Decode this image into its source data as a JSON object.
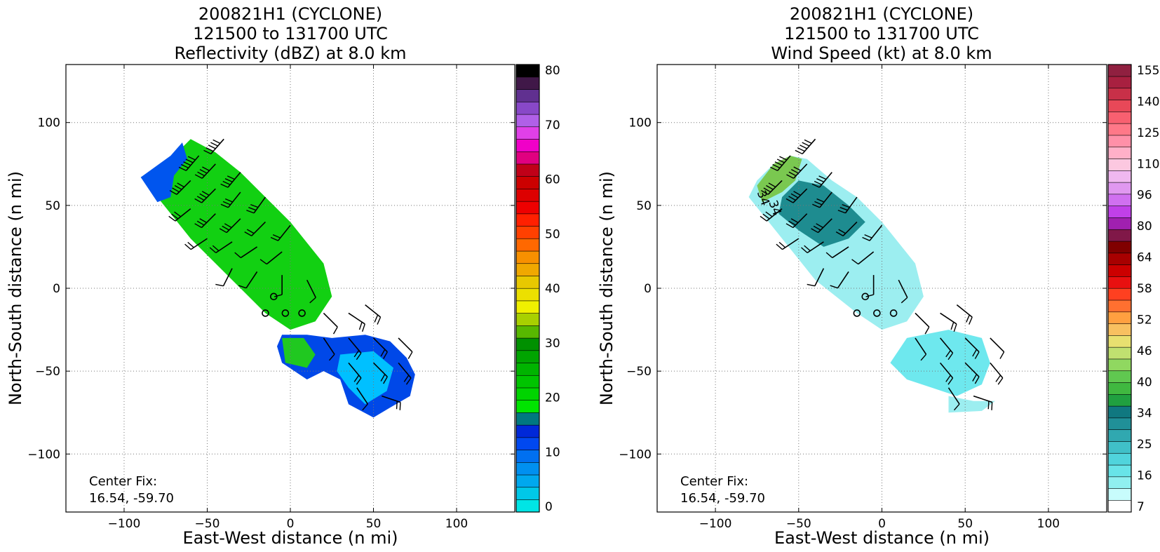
{
  "chart_data": [
    {
      "type": "heatmap",
      "title": [
        "200821H1 (CYCLONE)",
        "121500 to 131700 UTC",
        "Reflectivity (dBZ) at 8.0 km"
      ],
      "xlabel": "East-West distance (n mi)",
      "ylabel": "North-South distance (n mi)",
      "xlim": [
        -135,
        135
      ],
      "ylim": [
        -135,
        135
      ],
      "xticks": [
        "−100",
        "−50",
        "0",
        "50",
        "100"
      ],
      "yticks": [
        "−100",
        "−50",
        "0",
        "50",
        "100"
      ],
      "grid": true,
      "annotation": [
        "Center Fix:",
        "16.54, -59.70"
      ],
      "colorbar": {
        "min": 0,
        "max": 80,
        "tick_labels": [
          "80",
          "70",
          "60",
          "50",
          "40",
          "30",
          "20",
          "10",
          "0"
        ],
        "colors": [
          "#00e5e5",
          "#00c8e8",
          "#00a8ee",
          "#0090f0",
          "#0070f0",
          "#0048f0",
          "#0028d8",
          "#007880",
          "#00e400",
          "#00d400",
          "#00c400",
          "#00b400",
          "#00a400",
          "#009000",
          "#58b800",
          "#a8d000",
          "#f0f000",
          "#ece000",
          "#e8c800",
          "#f0a800",
          "#f89000",
          "#ff6800",
          "#ff4000",
          "#ff2000",
          "#ee0000",
          "#dd0000",
          "#cc0000",
          "#c00018",
          "#e00080",
          "#f000c8",
          "#e040e8",
          "#b060e8",
          "#8848c8",
          "#603090",
          "#401848",
          "#000000"
        ]
      },
      "regions": [
        {
          "name": "main-band",
          "color": "#12d012",
          "points": [
            [
              -90,
              67
            ],
            [
              -70,
              80
            ],
            [
              -60,
              90
            ],
            [
              -45,
              82
            ],
            [
              -30,
              70
            ],
            [
              -15,
              55
            ],
            [
              0,
              40
            ],
            [
              20,
              15
            ],
            [
              25,
              -5
            ],
            [
              15,
              -20
            ],
            [
              0,
              -25
            ],
            [
              -15,
              -15
            ],
            [
              -40,
              10
            ],
            [
              -60,
              30
            ],
            [
              -80,
              55
            ]
          ]
        },
        {
          "name": "nw-edge",
          "color": "#0055ee",
          "points": [
            [
              -90,
              67
            ],
            [
              -72,
              80
            ],
            [
              -65,
              88
            ],
            [
              -62,
              78
            ],
            [
              -70,
              68
            ],
            [
              -72,
              55
            ],
            [
              -80,
              52
            ]
          ]
        },
        {
          "name": "lower-blob",
          "color": "#0048e8",
          "points": [
            [
              -5,
              -28
            ],
            [
              10,
              -28
            ],
            [
              25,
              -30
            ],
            [
              45,
              -28
            ],
            [
              60,
              -32
            ],
            [
              70,
              -42
            ],
            [
              75,
              -52
            ],
            [
              72,
              -65
            ],
            [
              60,
              -72
            ],
            [
              50,
              -78
            ],
            [
              35,
              -70
            ],
            [
              30,
              -55
            ],
            [
              20,
              -50
            ],
            [
              10,
              -55
            ],
            [
              -5,
              -45
            ],
            [
              -8,
              -35
            ]
          ]
        },
        {
          "name": "lower-core",
          "color": "#00c0ff",
          "points": [
            [
              30,
              -40
            ],
            [
              50,
              -38
            ],
            [
              62,
              -48
            ],
            [
              58,
              -62
            ],
            [
              45,
              -70
            ],
            [
              35,
              -60
            ],
            [
              28,
              -50
            ]
          ]
        },
        {
          "name": "lower-green",
          "color": "#20c820",
          "points": [
            [
              -5,
              -30
            ],
            [
              8,
              -30
            ],
            [
              15,
              -40
            ],
            [
              10,
              -48
            ],
            [
              -3,
              -45
            ]
          ]
        }
      ],
      "barbs": [
        {
          "x": -40,
          "y": 90,
          "u": 35,
          "v": 40
        },
        {
          "x": -55,
          "y": 80,
          "u": 30,
          "v": 35
        },
        {
          "x": -45,
          "y": 75,
          "u": 28,
          "v": 30
        },
        {
          "x": -30,
          "y": 70,
          "u": 25,
          "v": 30
        },
        {
          "x": -60,
          "y": 65,
          "u": 30,
          "v": 30
        },
        {
          "x": -45,
          "y": 60,
          "u": 25,
          "v": 25
        },
        {
          "x": -30,
          "y": 58,
          "u": 20,
          "v": 25
        },
        {
          "x": -15,
          "y": 55,
          "u": 18,
          "v": 25
        },
        {
          "x": -60,
          "y": 48,
          "u": 25,
          "v": 20
        },
        {
          "x": -45,
          "y": 45,
          "u": 20,
          "v": 20
        },
        {
          "x": -30,
          "y": 42,
          "u": 18,
          "v": 18
        },
        {
          "x": -15,
          "y": 40,
          "u": 15,
          "v": 15
        },
        {
          "x": 0,
          "y": 38,
          "u": 12,
          "v": 15
        },
        {
          "x": -50,
          "y": 30,
          "u": 18,
          "v": 12
        },
        {
          "x": -35,
          "y": 28,
          "u": 15,
          "v": 10
        },
        {
          "x": -20,
          "y": 25,
          "u": 12,
          "v": 8
        },
        {
          "x": -5,
          "y": 22,
          "u": 10,
          "v": 8
        },
        {
          "x": -35,
          "y": 12,
          "u": 5,
          "v": 10
        },
        {
          "x": -20,
          "y": 10,
          "u": 8,
          "v": 12
        },
        {
          "x": -5,
          "y": 8,
          "u": 0,
          "v": 10
        },
        {
          "x": 10,
          "y": 5,
          "u": -5,
          "v": 10
        },
        {
          "x": -10,
          "y": -5,
          "u": 0,
          "v": 0
        },
        {
          "x": -15,
          "y": -15,
          "u": 0,
          "v": 0
        },
        {
          "x": -3,
          "y": -15,
          "u": 0,
          "v": 0
        },
        {
          "x": 7,
          "y": -15,
          "u": 0,
          "v": 0
        },
        {
          "x": 20,
          "y": -15,
          "u": -10,
          "v": 10
        },
        {
          "x": 35,
          "y": -15,
          "u": -15,
          "v": 10
        },
        {
          "x": 45,
          "y": -10,
          "u": -15,
          "v": 12
        },
        {
          "x": 20,
          "y": -30,
          "u": -8,
          "v": 12
        },
        {
          "x": 35,
          "y": -30,
          "u": -10,
          "v": 12
        },
        {
          "x": 50,
          "y": -30,
          "u": -12,
          "v": 12
        },
        {
          "x": 65,
          "y": -30,
          "u": -10,
          "v": 10
        },
        {
          "x": 35,
          "y": -45,
          "u": -10,
          "v": 12
        },
        {
          "x": 50,
          "y": -45,
          "u": -12,
          "v": 12
        },
        {
          "x": 65,
          "y": -45,
          "u": -10,
          "v": 12
        },
        {
          "x": 40,
          "y": -60,
          "u": -8,
          "v": 12
        },
        {
          "x": 55,
          "y": -65,
          "u": -15,
          "v": 5
        }
      ]
    },
    {
      "type": "heatmap",
      "title": [
        "200821H1 (CYCLONE)",
        "121500 to 131700 UTC",
        "Wind Speed (kt) at 8.0 km"
      ],
      "xlabel": "East-West distance (n mi)",
      "ylabel": "North-South distance (n mi)",
      "xlim": [
        -135,
        135
      ],
      "ylim": [
        -135,
        135
      ],
      "xticks": [
        "−100",
        "−50",
        "0",
        "50",
        "100"
      ],
      "yticks": [
        "−100",
        "−50",
        "0",
        "50",
        "100"
      ],
      "grid": true,
      "annotation": [
        "Center Fix:",
        "16.54, -59.70"
      ],
      "contour_labels": [
        "34",
        "34"
      ],
      "colorbar": {
        "min": 7,
        "max": 160,
        "tick_labels": [
          "155",
          "140",
          "125",
          "110",
          "96",
          "80",
          "64",
          "58",
          "52",
          "46",
          "40",
          "34",
          "25",
          "16",
          "7"
        ],
        "colors": [
          "#ffffff",
          "#c8fcfc",
          "#90f0f0",
          "#68e4e8",
          "#50d4dc",
          "#40c0c8",
          "#30a8b0",
          "#209098",
          "#107880",
          "#20a040",
          "#40b840",
          "#60c850",
          "#90d860",
          "#c0e070",
          "#e8e070",
          "#f8c060",
          "#ffa040",
          "#ff7030",
          "#ff4020",
          "#e81010",
          "#cc0000",
          "#a80000",
          "#800000",
          "#801848",
          "#a020b0",
          "#c040e8",
          "#d070f0",
          "#e098f0",
          "#f0b8f0",
          "#fcc8e0",
          "#ffb0c8",
          "#ff90a8",
          "#ff7888",
          "#f86070",
          "#e84858",
          "#c83048",
          "#a82040",
          "#902040"
        ]
      },
      "regions": [
        {
          "name": "main-band",
          "color": "#9ceef0",
          "points": [
            [
              -75,
              65
            ],
            [
              -65,
              75
            ],
            [
              -55,
              80
            ],
            [
              -45,
              78
            ],
            [
              -30,
              65
            ],
            [
              -15,
              55
            ],
            [
              0,
              40
            ],
            [
              20,
              15
            ],
            [
              25,
              -5
            ],
            [
              15,
              -20
            ],
            [
              0,
              -25
            ],
            [
              -15,
              -15
            ],
            [
              -40,
              5
            ],
            [
              -60,
              30
            ],
            [
              -80,
              55
            ]
          ]
        },
        {
          "name": "teal-core",
          "color": "#1e8c90",
          "points": [
            [
              -60,
              55
            ],
            [
              -50,
              65
            ],
            [
              -35,
              62
            ],
            [
              -20,
              50
            ],
            [
              -10,
              40
            ],
            [
              -20,
              30
            ],
            [
              -35,
              25
            ],
            [
              -50,
              35
            ],
            [
              -62,
              45
            ]
          ]
        },
        {
          "name": "green-cap",
          "color": "#7ac850",
          "points": [
            [
              -75,
              62
            ],
            [
              -65,
              75
            ],
            [
              -55,
              80
            ],
            [
              -48,
              78
            ],
            [
              -52,
              65
            ],
            [
              -60,
              58
            ],
            [
              -72,
              52
            ]
          ]
        },
        {
          "name": "lower-band",
          "color": "#6ee8ee",
          "points": [
            [
              15,
              -30
            ],
            [
              40,
              -25
            ],
            [
              60,
              -30
            ],
            [
              65,
              -45
            ],
            [
              60,
              -58
            ],
            [
              45,
              -65
            ],
            [
              30,
              -60
            ],
            [
              15,
              -55
            ],
            [
              5,
              -45
            ]
          ]
        },
        {
          "name": "lower-tail",
          "color": "#9ceef0",
          "points": [
            [
              40,
              -65
            ],
            [
              55,
              -68
            ],
            [
              68,
              -68
            ],
            [
              60,
              -74
            ],
            [
              40,
              -75
            ]
          ]
        }
      ],
      "barbs": [
        {
          "x": -40,
          "y": 90,
          "u": 35,
          "v": 40
        },
        {
          "x": -55,
          "y": 80,
          "u": 30,
          "v": 35
        },
        {
          "x": -45,
          "y": 75,
          "u": 28,
          "v": 30
        },
        {
          "x": -30,
          "y": 70,
          "u": 25,
          "v": 30
        },
        {
          "x": -60,
          "y": 65,
          "u": 30,
          "v": 30
        },
        {
          "x": -45,
          "y": 60,
          "u": 25,
          "v": 25
        },
        {
          "x": -30,
          "y": 58,
          "u": 20,
          "v": 25
        },
        {
          "x": -15,
          "y": 55,
          "u": 18,
          "v": 25
        },
        {
          "x": -60,
          "y": 48,
          "u": 25,
          "v": 20
        },
        {
          "x": -45,
          "y": 45,
          "u": 20,
          "v": 20
        },
        {
          "x": -30,
          "y": 42,
          "u": 18,
          "v": 18
        },
        {
          "x": -15,
          "y": 40,
          "u": 15,
          "v": 15
        },
        {
          "x": 0,
          "y": 38,
          "u": 12,
          "v": 15
        },
        {
          "x": -50,
          "y": 30,
          "u": 18,
          "v": 12
        },
        {
          "x": -35,
          "y": 28,
          "u": 15,
          "v": 10
        },
        {
          "x": -20,
          "y": 25,
          "u": 12,
          "v": 8
        },
        {
          "x": -5,
          "y": 22,
          "u": 10,
          "v": 8
        },
        {
          "x": -35,
          "y": 12,
          "u": 5,
          "v": 10
        },
        {
          "x": -20,
          "y": 10,
          "u": 8,
          "v": 12
        },
        {
          "x": -5,
          "y": 8,
          "u": 0,
          "v": 10
        },
        {
          "x": 10,
          "y": 5,
          "u": -5,
          "v": 10
        },
        {
          "x": -10,
          "y": -5,
          "u": 0,
          "v": 0
        },
        {
          "x": -15,
          "y": -15,
          "u": 0,
          "v": 0
        },
        {
          "x": -3,
          "y": -15,
          "u": 0,
          "v": 0
        },
        {
          "x": 7,
          "y": -15,
          "u": 0,
          "v": 0
        },
        {
          "x": 20,
          "y": -15,
          "u": -10,
          "v": 10
        },
        {
          "x": 35,
          "y": -15,
          "u": -15,
          "v": 10
        },
        {
          "x": 45,
          "y": -10,
          "u": -15,
          "v": 12
        },
        {
          "x": 20,
          "y": -30,
          "u": -8,
          "v": 12
        },
        {
          "x": 35,
          "y": -30,
          "u": -10,
          "v": 12
        },
        {
          "x": 50,
          "y": -30,
          "u": -12,
          "v": 12
        },
        {
          "x": 65,
          "y": -30,
          "u": -10,
          "v": 10
        },
        {
          "x": 35,
          "y": -45,
          "u": -10,
          "v": 12
        },
        {
          "x": 50,
          "y": -45,
          "u": -12,
          "v": 12
        },
        {
          "x": 65,
          "y": -45,
          "u": -10,
          "v": 12
        },
        {
          "x": 40,
          "y": -60,
          "u": -8,
          "v": 12
        },
        {
          "x": 55,
          "y": -65,
          "u": -15,
          "v": 5
        }
      ]
    }
  ]
}
